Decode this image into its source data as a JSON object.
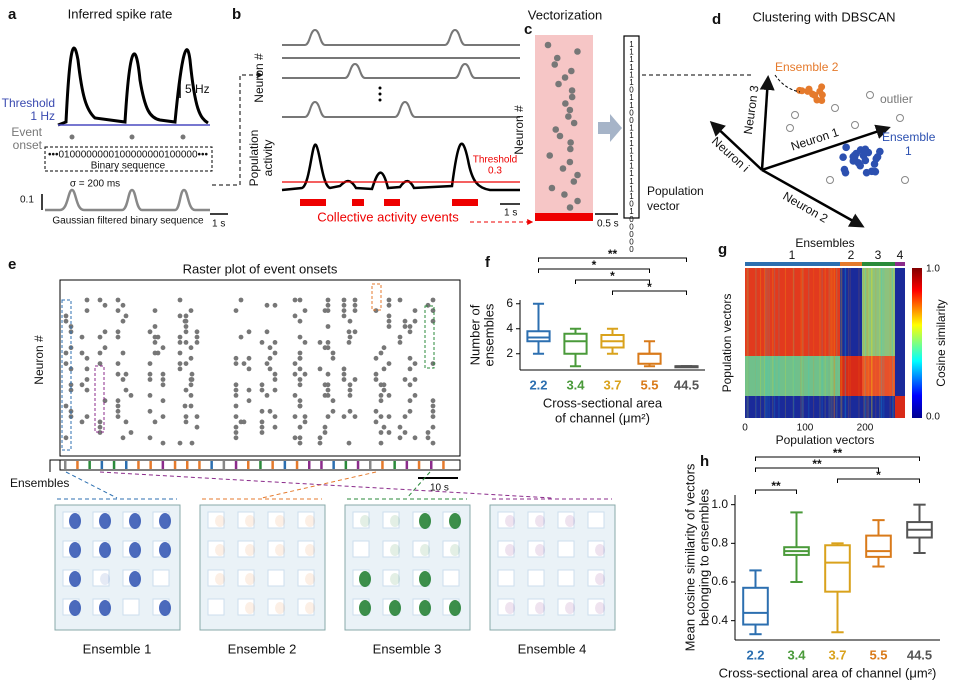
{
  "panels": {
    "a": {
      "label": "a",
      "title": "Inferred spike rate",
      "rate_scale": "5 Hz",
      "threshold": "Threshold",
      "threshold_value": "1 Hz",
      "event": "Event",
      "onset": "onset",
      "binary": "•••0100000000100000000100000•••",
      "binary_label": "Binary sequence",
      "sigma": "σ = 200 ms",
      "amp_scale": "0.1",
      "time_scale": "1 s",
      "gaussian": "Gaussian filtered binary sequence"
    },
    "b": {
      "label": "b",
      "neuron": "Neuron #",
      "population": "Population",
      "activity": "activity",
      "threshold": "Threshold",
      "threshold_value": "0.3",
      "time_scale": "1 s",
      "events": "Collective activity events"
    },
    "c": {
      "label": "c",
      "title": "Vectorization",
      "neuron": "Neuron #",
      "time_scale": "0.5 s",
      "vector": "1111110110011111111110100000",
      "population": "Population",
      "vector_label": "vector"
    },
    "d": {
      "label": "d",
      "title": "Clustering with DBSCAN",
      "ensemble2": "Ensemble 2",
      "outlier": "outlier",
      "ensemble1": "Ensemble",
      "ensemble1_num": "1",
      "axis3": "Neuron 3",
      "axis1": "Neuron 1",
      "axisi": "Neuron i",
      "axis2": "Neuron 2"
    },
    "e": {
      "label": "e",
      "title": "Raster plot of event onsets",
      "neuron": "Neuron #",
      "ensembles": "Ensembles",
      "time_scale": "10 s",
      "captions": [
        "Ensemble 1",
        "Ensemble 2",
        "Ensemble 3",
        "Ensemble 4"
      ]
    },
    "g": {
      "label": "g",
      "top": "Ensembles",
      "groups": [
        "1",
        "2",
        "3",
        "4"
      ],
      "ylabel": "Population vectors",
      "xlabel": "Population vectors",
      "xticks": [
        "0",
        "100",
        "200"
      ],
      "cb_top": "1.0",
      "cb_bottom": "0.0",
      "cb_label": "Cosine similarity"
    }
  },
  "chart_data": [
    {
      "type": "box",
      "label": "f",
      "ylabel": [
        "Number of",
        "ensembles"
      ],
      "xlabel": [
        "Cross-sectional area",
        "of channel (μm²)"
      ],
      "categories": [
        "2.2",
        "3.4",
        "3.7",
        "5.5",
        "44.5"
      ],
      "colors": [
        "#2c6fb0",
        "#4a9a3a",
        "#d9a21c",
        "#d97a1a",
        "#555555"
      ],
      "boxes": [
        {
          "min": 2,
          "q1": 3,
          "median": 3.3,
          "q3": 3.8,
          "max": 6
        },
        {
          "min": 1,
          "q1": 2,
          "median": 3,
          "q3": 3.6,
          "max": 4
        },
        {
          "min": 2,
          "q1": 2.5,
          "median": 3,
          "q3": 3.5,
          "max": 4
        },
        {
          "min": 1,
          "q1": 1.2,
          "median": 2,
          "q3": 2,
          "max": 3
        },
        {
          "min": 1,
          "q1": 1,
          "median": 1,
          "q3": 1,
          "max": 1
        }
      ],
      "ylim": [
        0.7,
        6.3
      ],
      "yticks": [
        2,
        4,
        6
      ],
      "annotations": [
        {
          "label": "**",
          "between": [
            "2.2",
            "44.5"
          ]
        },
        {
          "label": "*",
          "between": [
            "2.2",
            "5.5"
          ]
        },
        {
          "label": "*",
          "between": [
            "3.4",
            "5.5"
          ]
        },
        {
          "label": "*",
          "between": [
            "3.7",
            "44.5"
          ]
        }
      ]
    },
    {
      "type": "box",
      "label": "h",
      "ylabel": [
        "Mean cosine similarity of vectors",
        "belonging to ensembles"
      ],
      "xlabel": [
        "Cross-sectional area of channel (μm²)"
      ],
      "categories": [
        "2.2",
        "3.4",
        "3.7",
        "5.5",
        "44.5"
      ],
      "colors": [
        "#2c6fb0",
        "#4a9a3a",
        "#d9a21c",
        "#d97a1a",
        "#555555"
      ],
      "boxes": [
        {
          "min": 0.33,
          "q1": 0.38,
          "median": 0.44,
          "q3": 0.57,
          "max": 0.66
        },
        {
          "min": 0.6,
          "q1": 0.74,
          "median": 0.76,
          "q3": 0.78,
          "max": 0.96
        },
        {
          "min": 0.34,
          "q1": 0.55,
          "median": 0.7,
          "q3": 0.79,
          "max": 0.8
        },
        {
          "min": 0.68,
          "q1": 0.73,
          "median": 0.76,
          "q3": 0.84,
          "max": 0.92
        },
        {
          "min": 0.75,
          "q1": 0.83,
          "median": 0.87,
          "q3": 0.91,
          "max": 1.0
        }
      ],
      "ylim": [
        0.3,
        1.05
      ],
      "yticks": [
        0.4,
        0.6,
        0.8,
        {
          "value": 1.0,
          "label": "1.0"
        }
      ],
      "annotations": [
        {
          "label": "**",
          "between": [
            "2.2",
            "44.5"
          ]
        },
        {
          "label": "**",
          "between": [
            "2.2",
            "5.5"
          ]
        },
        {
          "label": "*",
          "between": [
            "3.7",
            "44.5"
          ]
        },
        {
          "label": "**",
          "between": [
            "2.2",
            "3.4"
          ]
        }
      ]
    }
  ]
}
